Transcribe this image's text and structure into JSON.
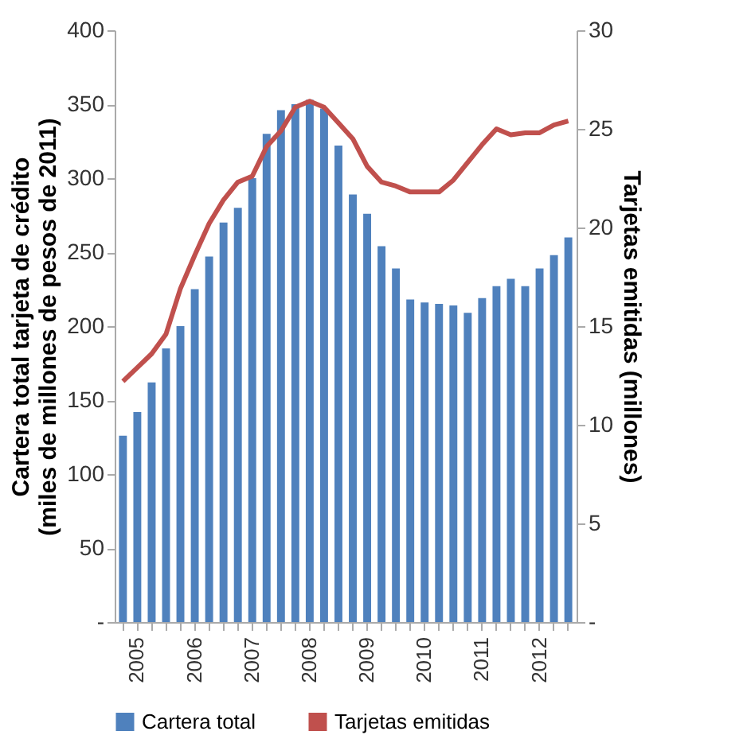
{
  "chart_data": {
    "type": "bar",
    "ylabel": "Cartera total tarjeta de crédito\n(miles de millones de pesos de 2011)",
    "y2label": "Tarjetas emitidas (millones)",
    "categories": [
      null,
      "2005",
      null,
      null,
      null,
      "2006",
      null,
      null,
      null,
      "2007",
      null,
      null,
      null,
      "2008",
      null,
      null,
      null,
      "2009",
      null,
      null,
      null,
      "2010",
      null,
      null,
      null,
      "2011",
      null,
      null,
      null,
      "2012",
      null,
      null
    ],
    "series": [
      {
        "name": "Cartera total",
        "color": "#4f81bd",
        "values": [
          126,
          142,
          162,
          185,
          200,
          225,
          247,
          270,
          280,
          300,
          330,
          346,
          350,
          353,
          347,
          322,
          289,
          276,
          254,
          239,
          218,
          216,
          215,
          214,
          209,
          219,
          227,
          232,
          227,
          239,
          248,
          260
        ]
      },
      {
        "name": "Tarjetas emitidas",
        "type": "line",
        "axis": "y2",
        "color": "#c0504d",
        "values": [
          12.2,
          12.9,
          13.6,
          14.6,
          16.9,
          18.6,
          20.2,
          21.4,
          22.3,
          22.6,
          24.1,
          24.9,
          26.1,
          26.4,
          26.1,
          25.3,
          24.5,
          23.1,
          22.3,
          22.1,
          21.8,
          21.8,
          21.8,
          22.4,
          23.3,
          24.2,
          25.0,
          24.7,
          24.8,
          24.8,
          25.2,
          25.4
        ]
      }
    ],
    "ylim": [
      0,
      400
    ],
    "yticks": [
      {
        "value": 0,
        "label": "-"
      },
      50,
      100,
      150,
      200,
      250,
      300,
      350,
      400
    ],
    "y2lim": [
      0,
      30
    ],
    "y2ticks": [
      {
        "value": 0,
        "label": "-"
      },
      5,
      10,
      15,
      20,
      25,
      30
    ],
    "grid": false,
    "legend": "bottom"
  }
}
